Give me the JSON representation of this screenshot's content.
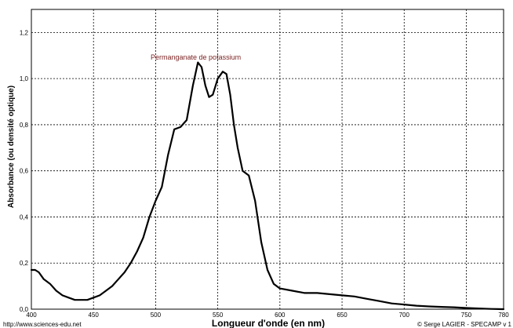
{
  "chart_data": {
    "type": "line",
    "annotation": "Permanganate de potassium",
    "xlabel": "Longueur d'onde (en nm)",
    "ylabel": "Absorbance (ou densité optique)",
    "xlim": [
      400,
      780
    ],
    "ylim": [
      0,
      1.3
    ],
    "x_ticks": [
      400,
      450,
      500,
      550,
      600,
      650,
      700,
      750,
      780
    ],
    "x_tick_labels": [
      "400",
      "450",
      "500",
      "550",
      "600",
      "650",
      "700",
      "750",
      "780"
    ],
    "y_ticks": [
      0,
      0.2,
      0.4,
      0.6,
      0.8,
      1.0,
      1.2
    ],
    "y_tick_labels": [
      "0,0",
      "0,2",
      "0,4",
      "0,6",
      "0,8",
      "1,0",
      "1,2"
    ],
    "grid": true,
    "grid_style": "dotted",
    "line_color": "#000000",
    "annotation_color": "#7a1f1f",
    "series": [
      {
        "x": [
          400,
          403,
          406,
          410,
          415,
          420,
          425,
          430,
          435,
          440,
          445,
          450,
          455,
          460,
          465,
          470,
          475,
          480,
          485,
          490,
          495,
          500,
          505,
          510,
          515,
          520,
          525,
          530,
          534,
          537,
          540,
          543,
          546,
          550,
          554,
          557,
          560,
          563,
          566,
          570,
          575,
          580,
          585,
          590,
          595,
          600,
          610,
          620,
          630,
          640,
          650,
          660,
          670,
          680,
          690,
          700,
          710,
          720,
          730,
          740,
          750,
          760,
          770,
          780
        ],
        "y": [
          0.17,
          0.17,
          0.16,
          0.13,
          0.11,
          0.08,
          0.06,
          0.05,
          0.04,
          0.04,
          0.04,
          0.05,
          0.06,
          0.08,
          0.1,
          0.13,
          0.16,
          0.2,
          0.25,
          0.31,
          0.4,
          0.47,
          0.53,
          0.67,
          0.78,
          0.79,
          0.82,
          0.97,
          1.07,
          1.05,
          0.97,
          0.92,
          0.93,
          1.0,
          1.03,
          1.02,
          0.93,
          0.8,
          0.7,
          0.6,
          0.58,
          0.47,
          0.29,
          0.17,
          0.11,
          0.09,
          0.08,
          0.07,
          0.07,
          0.065,
          0.06,
          0.055,
          0.045,
          0.035,
          0.025,
          0.02,
          0.015,
          0.012,
          0.01,
          0.008,
          0.005,
          0.003,
          0.001,
          0.0
        ]
      }
    ]
  },
  "footer": {
    "left_credit": "http://www.sciences-edu.net",
    "right_credit": "© Serge LAGIER - SPECAMP v 1"
  }
}
